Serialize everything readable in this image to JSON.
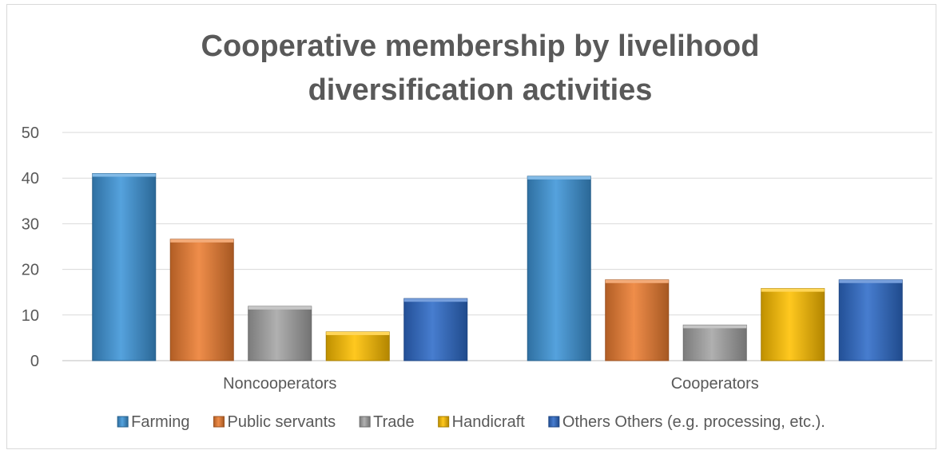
{
  "chart_data": {
    "type": "bar",
    "title_lines": [
      "Cooperative membership by livelihood",
      "diversification activities"
    ],
    "categories": [
      "Noncooperators",
      "Cooperators"
    ],
    "series": [
      {
        "name": "Farming",
        "values": [
          41,
          40.4
        ],
        "color": "#3e95d8"
      },
      {
        "name": "Public servants",
        "values": [
          26.6,
          17.7
        ],
        "color": "#ed7d31"
      },
      {
        "name": "Trade",
        "values": [
          11.9,
          7.8
        ],
        "color": "#a5a5a5"
      },
      {
        "name": "Handicraft",
        "values": [
          6.3,
          15.8
        ],
        "color": "#ffc000"
      },
      {
        "name": "Others Others (e.g. processing, etc.).",
        "values": [
          13.6,
          17.7
        ],
        "color": "#2e6bc9"
      }
    ],
    "ylim": [
      0,
      50
    ],
    "yticks": [
      0,
      10,
      20,
      30,
      40,
      50
    ],
    "grid": true,
    "legend_position": "bottom"
  }
}
